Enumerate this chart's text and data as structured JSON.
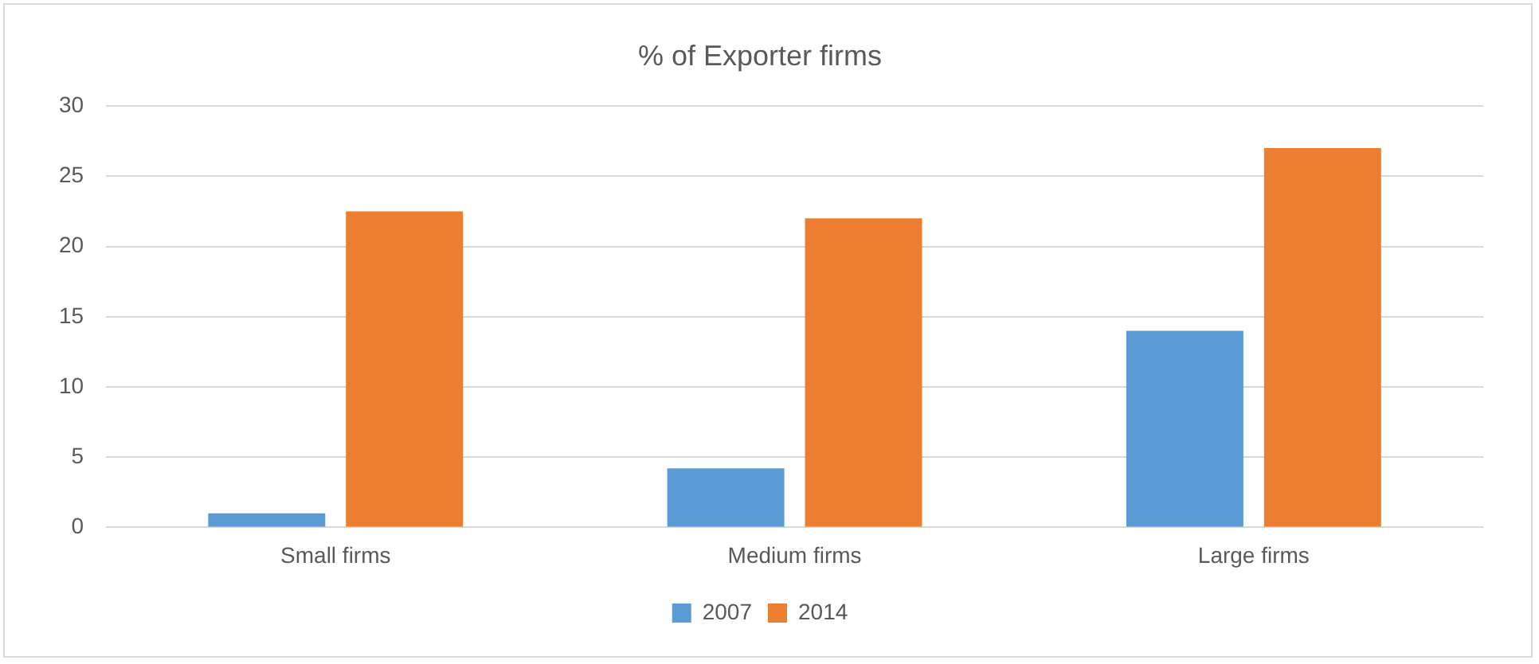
{
  "chart_data": {
    "type": "bar",
    "title": "% of Exporter firms",
    "categories": [
      "Small firms",
      "Medium firms",
      "Large firms"
    ],
    "series": [
      {
        "name": "2007",
        "color": "#5b9bd5",
        "values": [
          1,
          4.2,
          14
        ]
      },
      {
        "name": "2014",
        "color": "#ed7d31",
        "values": [
          22.5,
          22,
          27
        ]
      }
    ],
    "ylim": [
      0,
      30
    ],
    "yticks": [
      0,
      5,
      10,
      15,
      20,
      25,
      30
    ],
    "grid": "y",
    "legend": "bottom"
  }
}
